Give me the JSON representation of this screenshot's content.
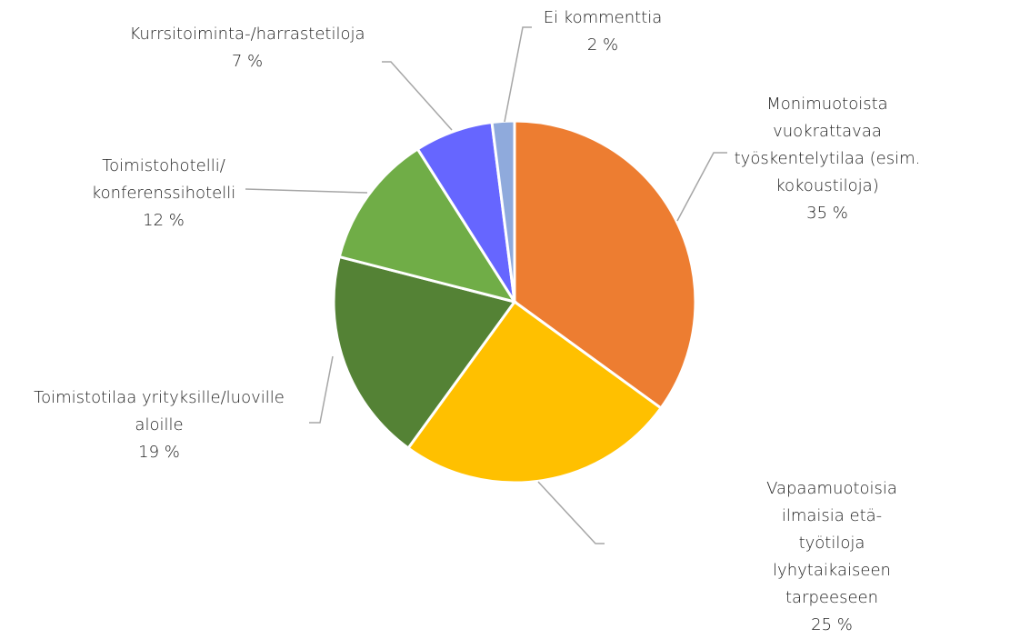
{
  "chart_data": {
    "type": "pie",
    "categories": [
      "Monimuotoista vuokrattavaa\ntyöskentelytilaa (esim.\nkokoustiloja)",
      "Vapaamuotoisia ilmaisia etä-\ntyötiloja lyhytaikaiseen tarpeeseen",
      "Toimistotilaa yrityksille/luoville\naloille",
      "Toimistohotelli/\nkonferenssihotelli",
      "Kurrsitoiminta-/harrastetiloja",
      "Ei kommenttia"
    ],
    "values": [
      35,
      25,
      19,
      12,
      7,
      2
    ],
    "value_labels": [
      "35 %",
      "25 %",
      "19 %",
      "12 %",
      "7 %",
      "2 %"
    ],
    "colors": [
      "#ED7D31",
      "#FFC000",
      "#548235",
      "#70AD47",
      "#6666FF",
      "#8FAADC"
    ]
  }
}
